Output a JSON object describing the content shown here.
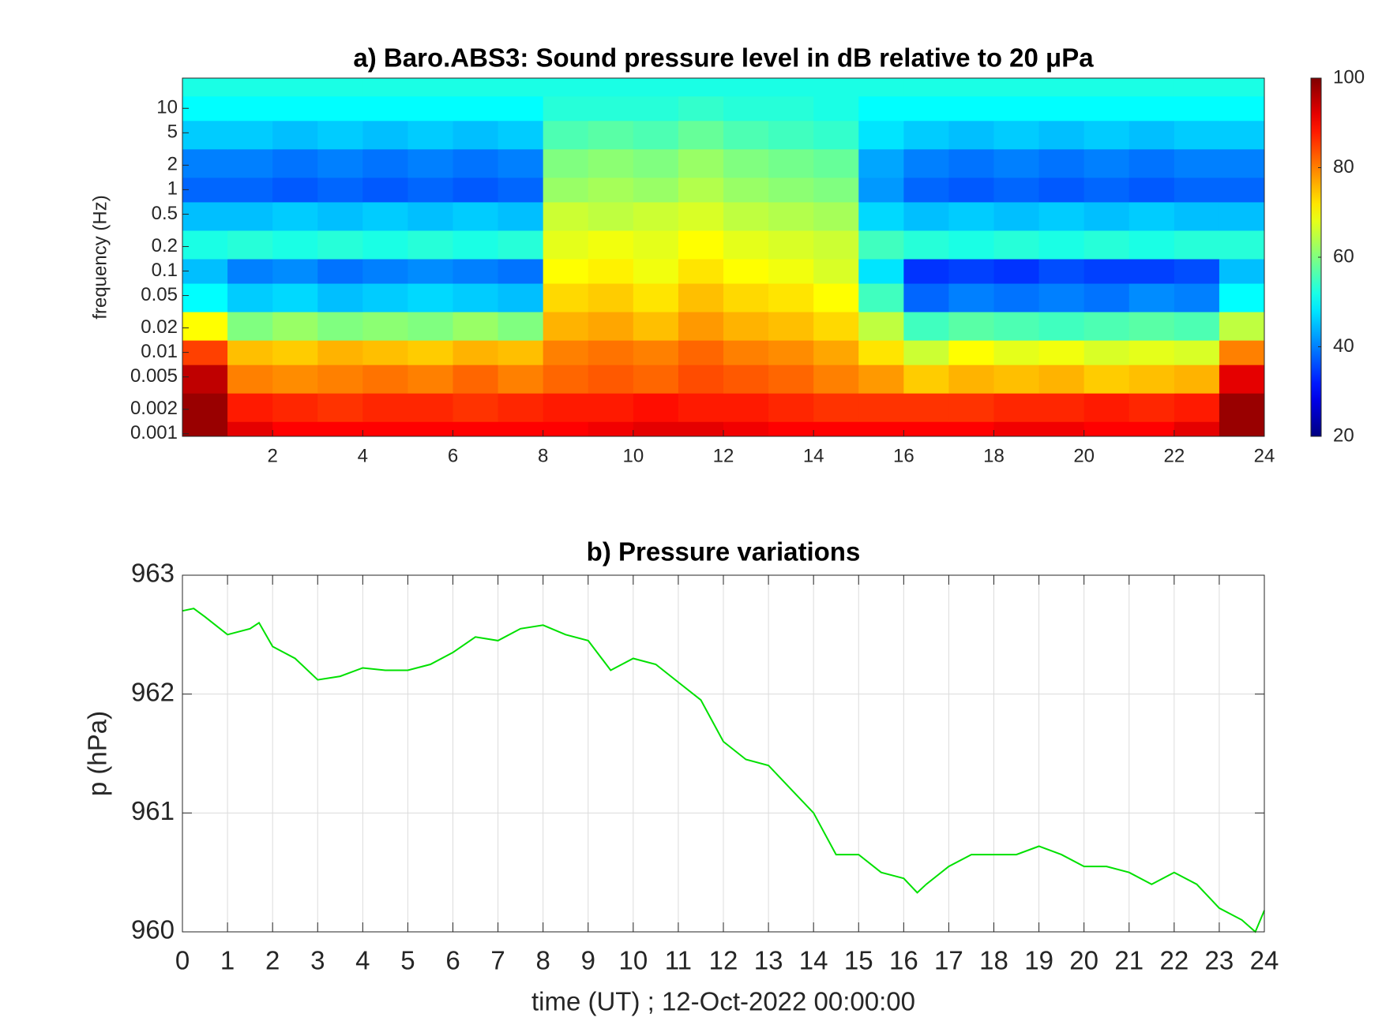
{
  "chart_data": [
    {
      "type": "heatmap",
      "title": "a) Baro.ABS3: Sound pressure level in dB relative to 20 μPa",
      "ylabel": "frequency (Hz)",
      "x": [
        0.5,
        1.5,
        2.5,
        3.5,
        4.5,
        5.5,
        6.5,
        7.5,
        8.5,
        9.5,
        10.5,
        11.5,
        12.5,
        13.5,
        14.5,
        15.5,
        16.5,
        17.5,
        18.5,
        19.5,
        20.5,
        21.5,
        22.5,
        23.5
      ],
      "y": [
        0.001,
        0.002,
        0.005,
        0.01,
        0.02,
        0.05,
        0.1,
        0.2,
        0.5,
        1,
        2,
        5,
        10,
        20
      ],
      "z": [
        [
          98,
          92,
          90,
          90,
          90,
          90,
          90,
          90,
          90,
          91,
          92,
          92,
          91,
          90,
          90,
          90,
          90,
          90,
          91,
          91,
          90,
          90,
          92,
          98
        ],
        [
          98,
          88,
          87,
          86,
          87,
          87,
          86,
          87,
          88,
          88,
          89,
          88,
          88,
          87,
          86,
          86,
          86,
          86,
          87,
          87,
          88,
          87,
          88,
          98
        ],
        [
          95,
          80,
          79,
          80,
          81,
          80,
          82,
          80,
          82,
          83,
          82,
          84,
          83,
          82,
          80,
          78,
          74,
          76,
          75,
          76,
          74,
          75,
          76,
          92
        ],
        [
          85,
          75,
          74,
          76,
          75,
          74,
          76,
          75,
          80,
          81,
          80,
          82,
          80,
          79,
          77,
          72,
          66,
          70,
          68,
          69,
          67,
          68,
          67,
          80
        ],
        [
          70,
          60,
          62,
          60,
          61,
          60,
          62,
          60,
          76,
          77,
          75,
          78,
          76,
          75,
          73,
          65,
          55,
          57,
          56,
          55,
          56,
          57,
          56,
          65
        ],
        [
          50,
          46,
          47,
          45,
          46,
          47,
          46,
          45,
          73,
          74,
          72,
          75,
          73,
          72,
          70,
          55,
          38,
          40,
          39,
          40,
          39,
          41,
          40,
          50
        ],
        [
          45,
          40,
          41,
          39,
          40,
          41,
          40,
          39,
          70,
          71,
          69,
          72,
          70,
          69,
          67,
          48,
          34,
          35,
          34,
          36,
          35,
          35,
          36,
          45
        ],
        [
          52,
          53,
          52,
          53,
          52,
          53,
          52,
          53,
          68,
          69,
          68,
          70,
          68,
          67,
          66,
          55,
          53,
          52,
          53,
          52,
          53,
          52,
          53,
          53
        ],
        [
          45,
          45,
          46,
          45,
          46,
          45,
          46,
          45,
          66,
          65,
          66,
          67,
          65,
          64,
          63,
          47,
          45,
          46,
          45,
          46,
          45,
          46,
          45,
          45
        ],
        [
          38,
          38,
          37,
          38,
          37,
          38,
          37,
          38,
          62,
          63,
          62,
          64,
          62,
          61,
          60,
          42,
          38,
          37,
          38,
          37,
          38,
          37,
          38,
          38
        ],
        [
          40,
          40,
          39,
          40,
          39,
          40,
          39,
          40,
          60,
          61,
          60,
          62,
          60,
          59,
          58,
          43,
          40,
          39,
          40,
          39,
          40,
          39,
          40,
          40
        ],
        [
          46,
          46,
          45,
          46,
          45,
          46,
          45,
          46,
          56,
          57,
          56,
          58,
          56,
          55,
          54,
          48,
          46,
          45,
          46,
          45,
          46,
          45,
          46,
          46
        ],
        [
          50,
          50,
          50,
          50,
          50,
          50,
          50,
          50,
          53,
          53,
          53,
          54,
          53,
          53,
          52,
          50,
          50,
          50,
          50,
          50,
          50,
          50,
          50,
          50
        ],
        [
          52,
          52,
          52,
          52,
          52,
          52,
          52,
          52,
          52,
          52,
          52,
          52,
          52,
          52,
          52,
          52,
          52,
          52,
          52,
          52,
          52,
          52,
          52,
          52
        ]
      ],
      "xlim": [
        0,
        24
      ],
      "xticks": [
        2,
        4,
        6,
        8,
        10,
        12,
        14,
        16,
        18,
        20,
        22,
        24
      ],
      "ylim": [
        0.00093,
        23.5
      ],
      "log_y": true,
      "yticks": [
        0.001,
        0.002,
        0.005,
        0.01,
        0.02,
        0.05,
        0.1,
        0.2,
        0.5,
        1,
        2,
        5,
        10
      ],
      "clim": [
        20,
        100
      ],
      "cticks": [
        20,
        40,
        60,
        80,
        100
      ],
      "colormap": "jet"
    },
    {
      "type": "line",
      "title": "b) Pressure variations",
      "xlabel": "time (UT) ; 12-Oct-2022 00:00:00",
      "ylabel": "p (hPa)",
      "x": [
        0,
        0.25,
        0.5,
        1,
        1.5,
        1.7,
        2,
        2.5,
        3,
        3.5,
        4,
        4.5,
        5,
        5.5,
        6,
        6.5,
        7,
        7.5,
        8,
        8.5,
        9,
        9.5,
        10,
        10.5,
        11,
        11.5,
        12,
        12.5,
        13,
        13.5,
        14,
        14.5,
        15,
        15.5,
        16,
        16.3,
        16.5,
        17,
        17.5,
        18,
        18.5,
        19,
        19.5,
        20,
        20.5,
        21,
        21.5,
        22,
        22.5,
        23,
        23.5,
        23.8,
        24
      ],
      "values": [
        962.7,
        962.72,
        962.65,
        962.5,
        962.55,
        962.6,
        962.4,
        962.3,
        962.12,
        962.15,
        962.22,
        962.2,
        962.2,
        962.25,
        962.35,
        962.48,
        962.45,
        962.55,
        962.58,
        962.5,
        962.45,
        962.2,
        962.3,
        962.25,
        962.1,
        961.95,
        961.6,
        961.45,
        961.4,
        961.2,
        961.0,
        960.65,
        960.65,
        960.5,
        960.45,
        960.33,
        960.4,
        960.55,
        960.65,
        960.65,
        960.65,
        960.72,
        960.65,
        960.55,
        960.55,
        960.5,
        960.4,
        960.5,
        960.4,
        960.2,
        960.1,
        960.0,
        960.18
      ],
      "color": "#00e000",
      "xlim": [
        0,
        24
      ],
      "xticks": [
        0,
        1,
        2,
        3,
        4,
        5,
        6,
        7,
        8,
        9,
        10,
        11,
        12,
        13,
        14,
        15,
        16,
        17,
        18,
        19,
        20,
        21,
        22,
        23,
        24
      ],
      "ylim": [
        960,
        963
      ],
      "yticks": [
        960,
        961,
        962,
        963
      ],
      "grid": true
    }
  ]
}
